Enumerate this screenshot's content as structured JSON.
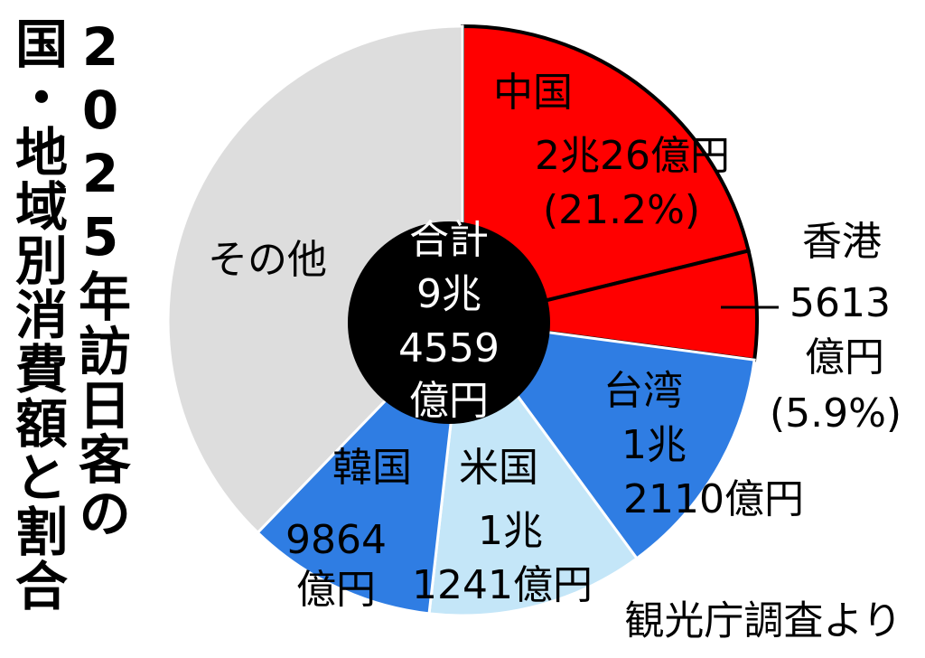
{
  "chart_data": {
    "type": "pie",
    "title": [
      "2025年訪日客の",
      "国・地域別消費額と割合"
    ],
    "categories": [
      "中国",
      "香港",
      "台湾",
      "米国",
      "韓国",
      "その他"
    ],
    "values": [
      20026,
      5613,
      12110,
      11241,
      9864,
      35705
    ],
    "value_labels": [
      [
        "2兆26億円",
        "(21.2%)"
      ],
      [
        "5613",
        "億円",
        "(5.9%)"
      ],
      [
        "1兆",
        "2110億円"
      ],
      [
        "1兆",
        "1241億円"
      ],
      [
        "9864",
        "億円"
      ],
      null
    ],
    "colors": [
      "#ff0000",
      "#ff0000",
      "#2f7de3",
      "#c4e6f8",
      "#2f7de3",
      "#dddddd"
    ],
    "center_label": [
      "合計",
      "9兆",
      "4559",
      "億円"
    ],
    "source": "観光庁調査より"
  }
}
